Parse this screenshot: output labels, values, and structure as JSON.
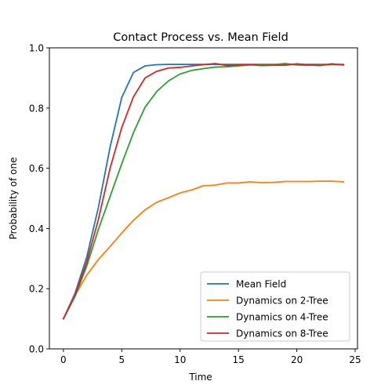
{
  "chart_data": {
    "type": "line",
    "title": "Contact Process vs. Mean Field",
    "xlabel": "Time",
    "ylabel": "Probability of one",
    "xlim": [
      -1.2,
      25.2
    ],
    "ylim": [
      0.0,
      1.0
    ],
    "xticks": [
      0,
      5,
      10,
      15,
      20,
      25
    ],
    "yticks": [
      0.0,
      0.2,
      0.4,
      0.6,
      0.8,
      1.0
    ],
    "xtick_labels": [
      "0",
      "5",
      "10",
      "15",
      "20",
      "25"
    ],
    "ytick_labels": [
      "0.0",
      "0.2",
      "0.4",
      "0.6",
      "0.8",
      "1.0"
    ],
    "grid": false,
    "legend_position": "lower-right",
    "x": [
      0,
      1,
      2,
      3,
      4,
      5,
      6,
      7,
      8,
      9,
      10,
      11,
      12,
      13,
      14,
      15,
      16,
      17,
      18,
      19,
      20,
      21,
      22,
      23,
      24
    ],
    "series": [
      {
        "name": "Mean Field",
        "color": "#1f77b4",
        "values": [
          0.1,
          0.185,
          0.305,
          0.47,
          0.67,
          0.835,
          0.918,
          0.94,
          0.944,
          0.945,
          0.945,
          0.945,
          0.945,
          0.945,
          0.945,
          0.945,
          0.945,
          0.945,
          0.945,
          0.945,
          0.945,
          0.945,
          0.945,
          0.945,
          0.945
        ]
      },
      {
        "name": "Dynamics on 2-Tree",
        "color": "#ff7f0e",
        "values": [
          0.1,
          0.178,
          0.245,
          0.297,
          0.34,
          0.385,
          0.427,
          0.462,
          0.487,
          0.502,
          0.518,
          0.528,
          0.542,
          0.544,
          0.551,
          0.551,
          0.555,
          0.552,
          0.553,
          0.556,
          0.556,
          0.556,
          0.557,
          0.557,
          0.555
        ]
      },
      {
        "name": "Dynamics on 4-Tree",
        "color": "#2ca02c",
        "values": [
          0.1,
          0.175,
          0.275,
          0.397,
          0.506,
          0.615,
          0.718,
          0.803,
          0.855,
          0.89,
          0.913,
          0.925,
          0.931,
          0.936,
          0.937,
          0.94,
          0.943,
          0.943,
          0.944,
          0.948,
          0.943,
          0.942,
          0.943,
          0.944,
          0.944
        ]
      },
      {
        "name": "Dynamics on 8-Tree",
        "color": "#d62728",
        "values": [
          0.1,
          0.177,
          0.288,
          0.43,
          0.6,
          0.735,
          0.837,
          0.9,
          0.922,
          0.933,
          0.935,
          0.94,
          0.944,
          0.948,
          0.941,
          0.943,
          0.944,
          0.941,
          0.942,
          0.942,
          0.947,
          0.943,
          0.941,
          0.947,
          0.943
        ]
      }
    ]
  }
}
